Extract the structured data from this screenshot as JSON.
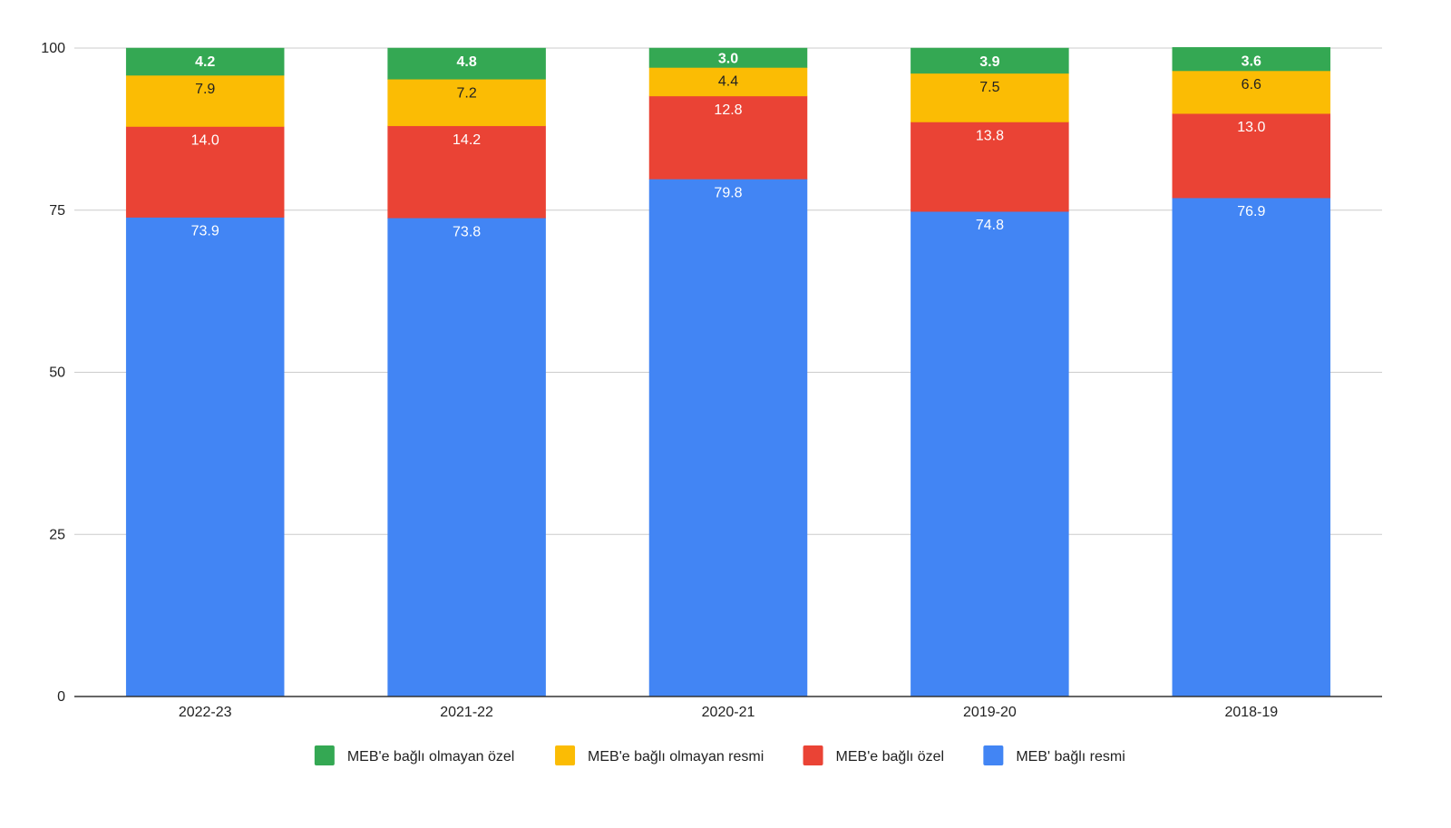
{
  "chart_data": {
    "type": "bar",
    "stacked": true,
    "title": "",
    "xlabel": "",
    "ylabel": "",
    "ylim": [
      0,
      100
    ],
    "yticks": [
      0,
      25,
      50,
      75,
      100
    ],
    "grid": true,
    "legend_position": "bottom",
    "categories": [
      "2022-23",
      "2021-22",
      "2020-21",
      "2019-20",
      "2018-19"
    ],
    "series": [
      {
        "name": "MEB' bağlı resmi",
        "color": "#4285f4",
        "label_color": "#ffffff",
        "values": [
          73.9,
          73.8,
          79.8,
          74.8,
          76.9
        ],
        "labels": [
          "73.9",
          "73.8",
          "79.8",
          "74.8",
          "76.9"
        ]
      },
      {
        "name": "MEB'e bağlı özel",
        "color": "#ea4335",
        "label_color": "#ffffff",
        "values": [
          14.0,
          14.2,
          12.8,
          13.8,
          13.0
        ],
        "labels": [
          "14.0",
          "14.2",
          "12.8",
          "13.8",
          "13.0"
        ]
      },
      {
        "name": "MEB'e bağlı olmayan resmi",
        "color": "#fbbc04",
        "label_color": "#222222",
        "values": [
          7.9,
          7.2,
          4.4,
          7.5,
          6.6
        ],
        "labels": [
          "7.9",
          "7.2",
          "4.4",
          "7.5",
          "6.6"
        ]
      },
      {
        "name": "MEB'e bağlı olmayan özel",
        "color": "#34a853",
        "label_color": "#ffffff",
        "values": [
          4.2,
          4.8,
          3.0,
          3.9,
          3.6
        ],
        "labels": [
          "4.2",
          "4.8",
          "3.0",
          "3.9",
          "3.6"
        ]
      }
    ],
    "legend_order": [
      3,
      2,
      1,
      0
    ]
  }
}
